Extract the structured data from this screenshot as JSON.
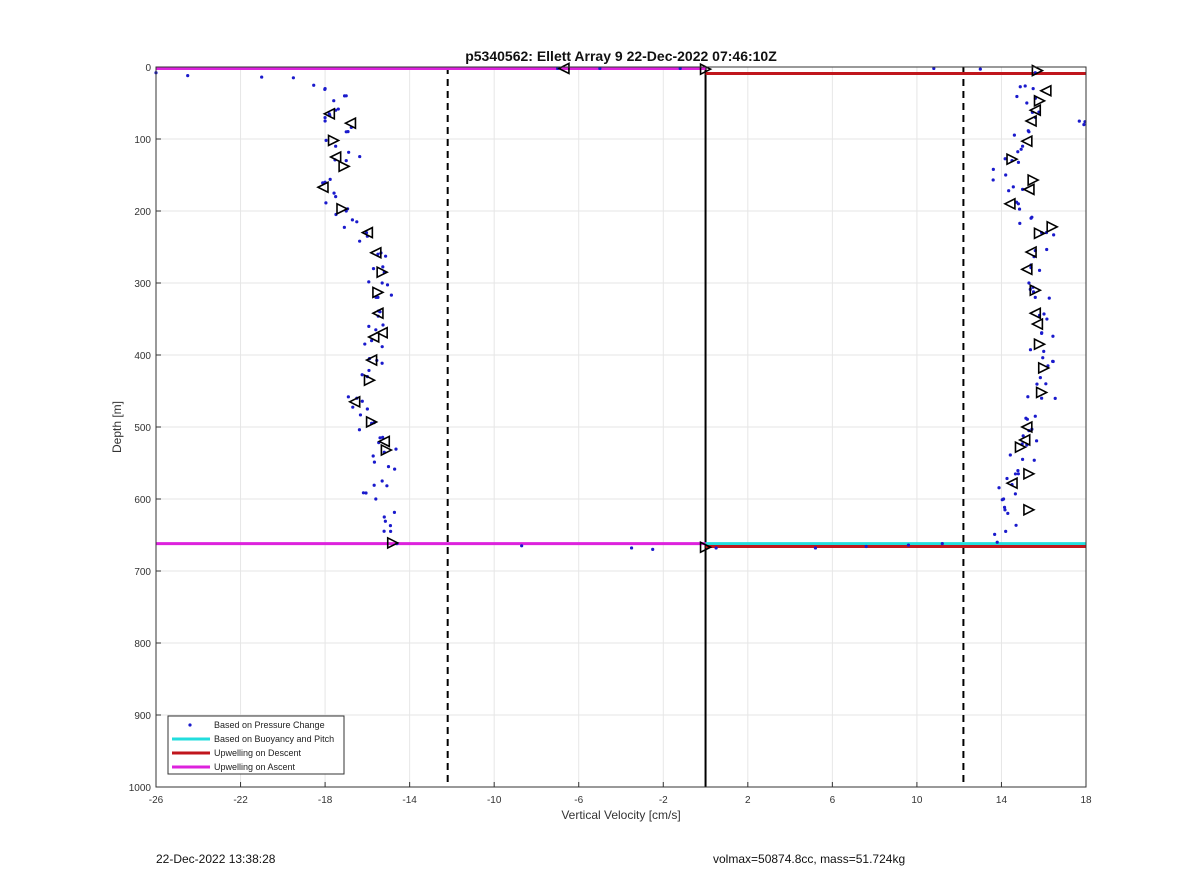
{
  "chart_data": {
    "type": "scatter",
    "title": "p5340562: Ellett Array 9 22-Dec-2022 07:46:10Z",
    "xlabel": "Vertical Velocity [cm/s]",
    "ylabel": "Depth [m]",
    "xlim": [
      -26,
      18
    ],
    "ylim": [
      0,
      1000
    ],
    "y_reversed": true,
    "x_ticks": [
      -26,
      -22,
      -18,
      -14,
      -10,
      -6,
      -2,
      2,
      6,
      10,
      14,
      18
    ],
    "y_ticks": [
      0,
      100,
      200,
      300,
      400,
      500,
      600,
      700,
      800,
      900,
      1000
    ],
    "grid": true,
    "legend_position": "bottom-left",
    "vertical_lines": [
      {
        "x": -12.2,
        "style": "dashed",
        "color": "#000000"
      },
      {
        "x": 0,
        "style": "solid",
        "color": "#000000"
      },
      {
        "x": 12.2,
        "style": "dashed",
        "color": "#000000"
      }
    ],
    "series": [
      {
        "name": "Based on Pressure Change",
        "kind": "points",
        "color": "#1a1acc",
        "descent_profile": [
          [
            -26,
            8
          ],
          [
            -24.5,
            12
          ],
          [
            -21,
            14
          ],
          [
            -19.5,
            15
          ],
          [
            -18,
            30
          ],
          [
            -17,
            40
          ],
          [
            -17.5,
            60
          ],
          [
            -18,
            75
          ],
          [
            -17,
            90
          ],
          [
            -17.5,
            110
          ],
          [
            -17,
            130
          ],
          [
            -18,
            160
          ],
          [
            -17.5,
            180
          ],
          [
            -17,
            200
          ],
          [
            -16.5,
            215
          ],
          [
            -16,
            235
          ],
          [
            -15.5,
            260
          ],
          [
            -15.2,
            285
          ],
          [
            -15.3,
            300
          ],
          [
            -15.5,
            320
          ],
          [
            -15.4,
            340
          ],
          [
            -15.6,
            365
          ],
          [
            -15.8,
            380
          ],
          [
            -15.9,
            405
          ],
          [
            -16,
            430
          ],
          [
            -16.5,
            460
          ],
          [
            -16,
            475
          ],
          [
            -15.8,
            495
          ],
          [
            -15.4,
            515
          ],
          [
            -15.2,
            535
          ],
          [
            -15,
            555
          ],
          [
            -15.3,
            575
          ],
          [
            -15.6,
            600
          ],
          [
            -15.2,
            625
          ],
          [
            -14.9,
            645
          ],
          [
            -14.6,
            662
          ],
          [
            -8.7,
            665
          ],
          [
            -3.5,
            668
          ],
          [
            -2.5,
            670
          ],
          [
            0.5,
            668
          ],
          [
            5.2,
            668
          ],
          [
            7.6,
            666
          ],
          [
            9.6,
            664
          ],
          [
            11.2,
            662
          ]
        ],
        "ascent_profile": [
          [
            10.8,
            2
          ],
          [
            13,
            3
          ],
          [
            15.6,
            8
          ],
          [
            15.5,
            30
          ],
          [
            15.2,
            50
          ],
          [
            15.6,
            70
          ],
          [
            15.3,
            90
          ],
          [
            15,
            110
          ],
          [
            14.5,
            130
          ],
          [
            14.2,
            150
          ],
          [
            15,
            170
          ],
          [
            14.8,
            190
          ],
          [
            15.4,
            210
          ],
          [
            15.9,
            230
          ],
          [
            15.6,
            255
          ],
          [
            15.4,
            275
          ],
          [
            15.3,
            300
          ],
          [
            15.6,
            320
          ],
          [
            15.8,
            345
          ],
          [
            15.9,
            370
          ],
          [
            16,
            395
          ],
          [
            16.2,
            415
          ],
          [
            16.1,
            440
          ],
          [
            15.9,
            460
          ],
          [
            15.6,
            485
          ],
          [
            15.3,
            505
          ],
          [
            15.2,
            525
          ],
          [
            15,
            545
          ],
          [
            14.8,
            565
          ],
          [
            14.5,
            580
          ],
          [
            14.1,
            600
          ],
          [
            14.3,
            620
          ],
          [
            14.2,
            645
          ],
          [
            13.8,
            660
          ],
          [
            -7,
            2
          ],
          [
            -5,
            2
          ],
          [
            -1.2,
            2
          ],
          [
            17.9,
            80
          ]
        ]
      },
      {
        "name": "Based on Buoyancy and Pitch",
        "kind": "line",
        "color": "#22dddd",
        "segments": [
          {
            "x": [
              0,
              18
            ],
            "y": [
              662,
              662
            ]
          }
        ]
      },
      {
        "name": "Upwelling on Descent",
        "kind": "line",
        "color": "#c0161c",
        "segments": [
          {
            "x": [
              0,
              18
            ],
            "y": [
              9,
              9
            ]
          },
          {
            "x": [
              0,
              18
            ],
            "y": [
              666,
              666
            ]
          }
        ]
      },
      {
        "name": "Upwelling on Ascent",
        "kind": "line",
        "color": "#dd22dd",
        "segments": [
          {
            "x": [
              -26,
              0
            ],
            "y": [
              2,
              2
            ]
          },
          {
            "x": [
              -26,
              0
            ],
            "y": [
              662,
              662
            ]
          }
        ]
      },
      {
        "name": "",
        "kind": "markers",
        "color": "#000000",
        "descent_markers": [
          [
            -17.8,
            65,
            "left"
          ],
          [
            -16.8,
            78,
            "left"
          ],
          [
            -17.6,
            102,
            "right"
          ],
          [
            -17.5,
            125,
            "left"
          ],
          [
            -17.1,
            138,
            "right"
          ],
          [
            -18.1,
            167,
            "left"
          ],
          [
            -17.2,
            197,
            "right"
          ],
          [
            -16,
            230,
            "left"
          ],
          [
            -15.6,
            258,
            "left"
          ],
          [
            -15.3,
            285,
            "right"
          ],
          [
            -15.5,
            313,
            "right"
          ],
          [
            -15.5,
            342,
            "left"
          ],
          [
            -15.7,
            375,
            "left"
          ],
          [
            -15.3,
            369,
            "left"
          ],
          [
            -15.8,
            407,
            "left"
          ],
          [
            -15.9,
            435,
            "right"
          ],
          [
            -16.6,
            465,
            "left"
          ],
          [
            -15.8,
            493,
            "right"
          ],
          [
            -15.2,
            520,
            "left"
          ],
          [
            -15.1,
            532,
            "right"
          ],
          [
            -14.8,
            661,
            "right"
          ]
        ],
        "ascent_markers": [
          [
            15.7,
            5,
            "right"
          ],
          [
            16.1,
            33,
            "left"
          ],
          [
            15.8,
            47,
            "right"
          ],
          [
            15.6,
            60,
            "left"
          ],
          [
            15.4,
            75,
            "left"
          ],
          [
            15.2,
            103,
            "left"
          ],
          [
            14.5,
            128,
            "right"
          ],
          [
            15.5,
            157,
            "right"
          ],
          [
            15.3,
            170,
            "left"
          ],
          [
            14.4,
            190,
            "left"
          ],
          [
            16.4,
            222,
            "right"
          ],
          [
            15.8,
            231,
            "right"
          ],
          [
            15.4,
            257,
            "left"
          ],
          [
            15.2,
            281,
            "left"
          ],
          [
            15.6,
            310,
            "right"
          ],
          [
            15.6,
            342,
            "left"
          ],
          [
            15.7,
            357,
            "left"
          ],
          [
            15.8,
            385,
            "right"
          ],
          [
            16,
            418,
            "right"
          ],
          [
            15.9,
            452,
            "right"
          ],
          [
            15.2,
            500,
            "left"
          ],
          [
            15.1,
            518,
            "left"
          ],
          [
            14.9,
            528,
            "right"
          ],
          [
            15.3,
            565,
            "right"
          ],
          [
            14.5,
            578,
            "left"
          ],
          [
            15.3,
            615,
            "right"
          ],
          [
            0,
            3,
            "right"
          ],
          [
            0,
            667,
            "right"
          ],
          [
            -6.7,
            2,
            "left"
          ]
        ]
      }
    ],
    "legend": [
      {
        "label": "Based on Pressure Change",
        "symbol": "dot",
        "color": "#1a1acc"
      },
      {
        "label": "Based on Buoyancy and Pitch",
        "symbol": "line",
        "color": "#22dddd"
      },
      {
        "label": "Upwelling on Descent",
        "symbol": "line",
        "color": "#c0161c"
      },
      {
        "label": "Upwelling on Ascent",
        "symbol": "line",
        "color": "#dd22dd"
      }
    ]
  },
  "footer": {
    "left": "22-Dec-2022 13:38:28",
    "right": "volmax=50874.8cc, mass=51.724kg"
  }
}
